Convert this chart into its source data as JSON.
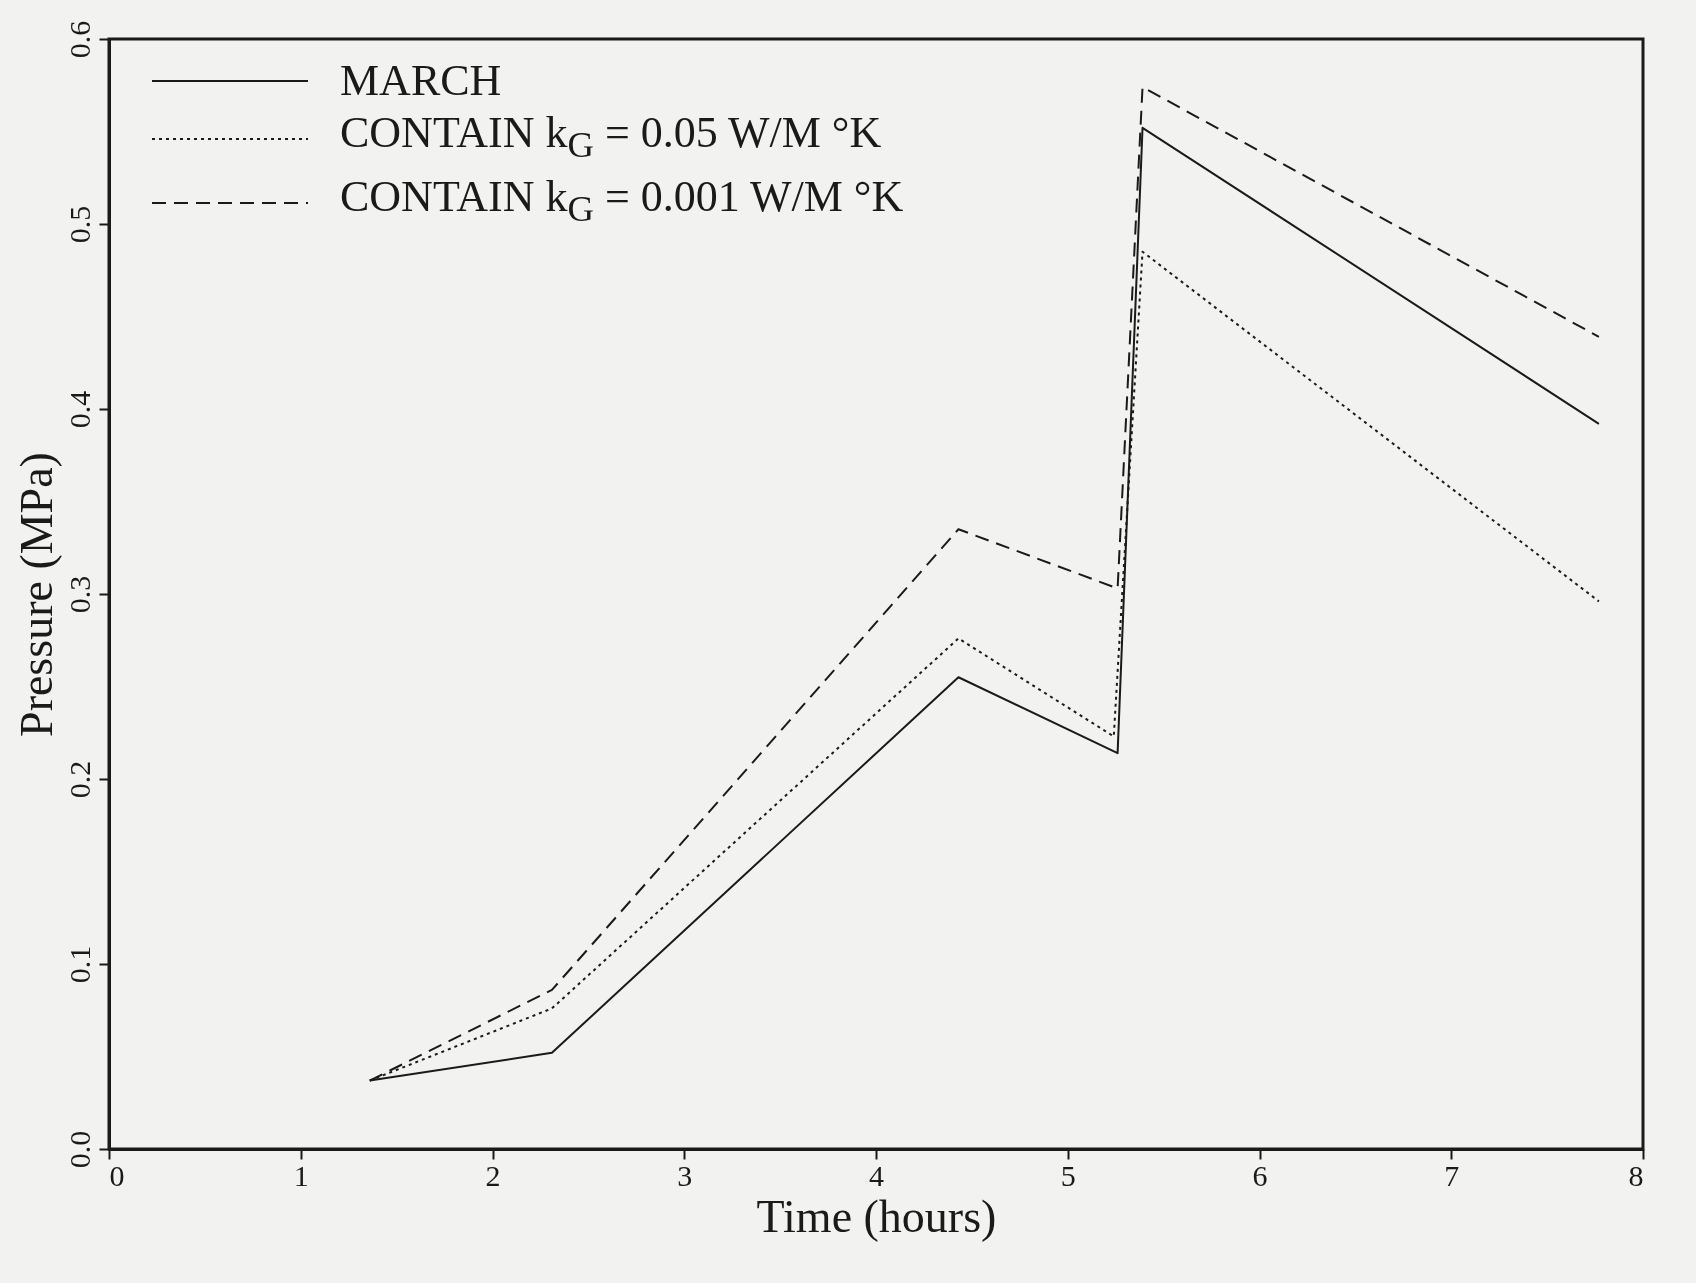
{
  "chart_data": {
    "type": "line",
    "xlabel": "Time (hours)",
    "ylabel": "Pressure (MPa)",
    "xlim": [
      0,
      8
    ],
    "xticks": [
      0,
      1,
      2,
      3,
      4,
      5,
      6,
      7,
      8
    ],
    "ylim": [
      0,
      0.6
    ],
    "yticks": [
      {
        "value": 0,
        "label": "0.0"
      },
      0.1,
      0.2,
      0.3,
      0.4,
      0.5,
      0.6
    ],
    "grid": false,
    "legend": "top left",
    "series": [
      {
        "name": "MARCH",
        "color": "#1a1a1a",
        "line_style": "solid",
        "x": [
          1.36,
          2.31,
          4.43,
          5.26,
          5.39,
          7.77
        ],
        "values": [
          0.037,
          0.052,
          0.255,
          0.214,
          0.552,
          0.392
        ]
      },
      {
        "name": "CONTAIN k$_{G}$ = 0.05 W/M °K",
        "color": "#1a1a1a",
        "line_style": "dotted",
        "x": [
          1.36,
          2.31,
          4.43,
          5.24,
          5.39,
          7.77
        ],
        "values": [
          0.037,
          0.076,
          0.276,
          0.223,
          0.485,
          0.296
        ]
      },
      {
        "name": "CONTAIN k$_{G}$ = 0.001 W/M °K",
        "color": "#1a1a1a",
        "line_style": "dashed",
        "x": [
          1.36,
          2.31,
          4.43,
          5.26,
          5.39,
          7.77
        ],
        "values": [
          0.037,
          0.086,
          0.335,
          0.303,
          0.574,
          0.439
        ]
      }
    ]
  }
}
